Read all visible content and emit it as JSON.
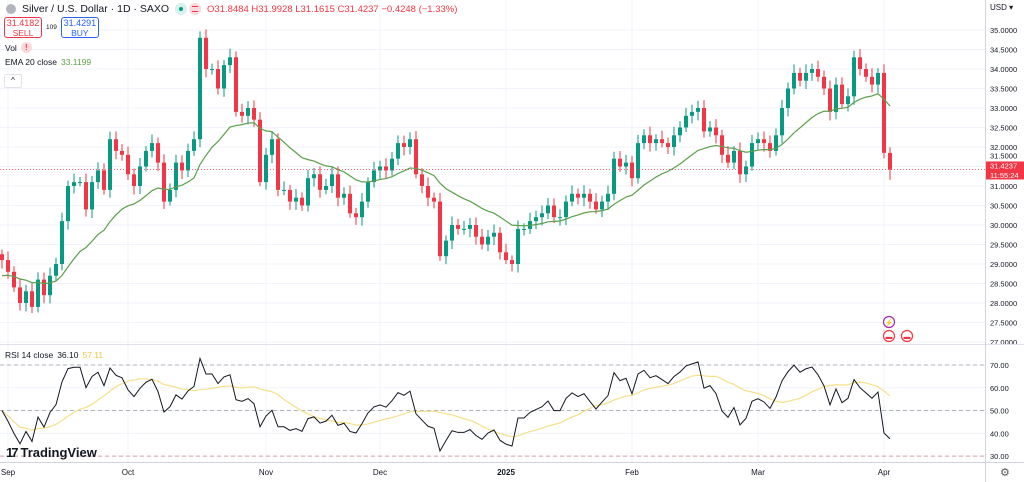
{
  "header": {
    "title": "Silver / U.S. Dollar · 1D · SAXO",
    "ohlc": "O31.8484 H31.9928 L31.1615 C31.4237 −0.4248 (−1.33%)"
  },
  "trade": {
    "sell_price": "31.4182",
    "sell_label": "SELL",
    "spread": "109",
    "buy_price": "31.4291",
    "buy_label": "BUY"
  },
  "legends": {
    "vol": "Vol",
    "ema_label": "EMA 20 close",
    "ema_value": "33.1199",
    "rsi_label": "RSI 14 close",
    "rsi_value": "36.10",
    "rsi_ma_value": "57.11"
  },
  "axis": {
    "currency": "USD ▾",
    "current_price": "31.4237",
    "countdown": "11:55:24"
  },
  "logo": "TradingView",
  "colors": {
    "up": "#089981",
    "down": "#f23645",
    "ema": "#5b9f4b",
    "rsi": "#131722",
    "rsi_ma": "#f5e08a",
    "grid": "#f0f3fa"
  },
  "chart_data": {
    "type": "candlestick",
    "price_ylim": [
      27,
      35
    ],
    "price_ticks": [
      "35.0000",
      "34.5000",
      "34.0000",
      "33.5000",
      "33.0000",
      "32.5000",
      "32.0000",
      "31.5000",
      "31.0000",
      "30.5000",
      "30.0000",
      "29.5000",
      "29.0000",
      "28.5000",
      "28.0000",
      "27.5000",
      "27.0000"
    ],
    "rsi_ylim": [
      27.4,
      78.8
    ],
    "rsi_ticks": [
      "70.00",
      "60.00",
      "50.00",
      "40.00",
      "30.00"
    ],
    "rsi_levels": [
      70,
      50,
      30
    ],
    "x_labels": [
      {
        "label": "Sep",
        "index": 1
      },
      {
        "label": "Oct",
        "index": 21
      },
      {
        "label": "Nov",
        "index": 44
      },
      {
        "label": "Dec",
        "index": 63
      },
      {
        "label": "2025",
        "index": 84
      },
      {
        "label": "Feb",
        "index": 105
      },
      {
        "label": "Mar",
        "index": 126
      },
      {
        "label": "Apr",
        "index": 147
      }
    ],
    "closes": [
      29.1,
      28.8,
      28.4,
      28.0,
      28.3,
      27.9,
      28.6,
      28.2,
      28.7,
      29.0,
      30.1,
      31.0,
      31.1,
      31.1,
      30.4,
      31.1,
      31.4,
      30.9,
      32.2,
      31.9,
      31.8,
      31.3,
      31.0,
      31.5,
      31.9,
      32.1,
      31.6,
      30.6,
      30.9,
      31.6,
      31.4,
      31.9,
      32.2,
      34.8,
      34.0,
      34.0,
      33.5,
      34.1,
      34.3,
      32.9,
      32.8,
      33.0,
      32.7,
      31.1,
      31.8,
      32.2,
      30.9,
      30.9,
      30.6,
      30.7,
      30.5,
      31.2,
      31.3,
      30.9,
      31.0,
      31.3,
      30.7,
      30.8,
      30.3,
      30.2,
      30.6,
      31.1,
      31.4,
      31.5,
      31.4,
      31.7,
      32.1,
      32.0,
      32.2,
      31.3,
      31.0,
      30.7,
      30.6,
      29.2,
      29.6,
      30.0,
      29.9,
      29.9,
      30.0,
      29.7,
      29.5,
      29.7,
      29.8,
      29.3,
      29.1,
      29.0,
      29.9,
      29.9,
      30.1,
      30.2,
      30.3,
      30.5,
      30.2,
      30.2,
      30.6,
      30.8,
      30.7,
      30.8,
      30.6,
      30.4,
      30.6,
      30.8,
      31.7,
      31.5,
      31.6,
      31.2,
      32.1,
      32.3,
      32.1,
      32.2,
      32.1,
      32.0,
      32.3,
      32.5,
      32.8,
      32.9,
      33.0,
      32.4,
      32.5,
      32.3,
      31.8,
      31.6,
      31.9,
      31.3,
      31.5,
      32.1,
      32.2,
      32.1,
      31.9,
      32.3,
      33.0,
      33.5,
      33.9,
      33.7,
      33.9,
      34.0,
      33.8,
      33.5,
      32.9,
      33.6,
      33.1,
      33.3,
      34.3,
      34.0,
      33.8,
      33.6,
      33.9,
      31.85,
      31.4237
    ],
    "ema_period": 20,
    "rsi_period": 14,
    "rsi_ma_period": 14
  }
}
